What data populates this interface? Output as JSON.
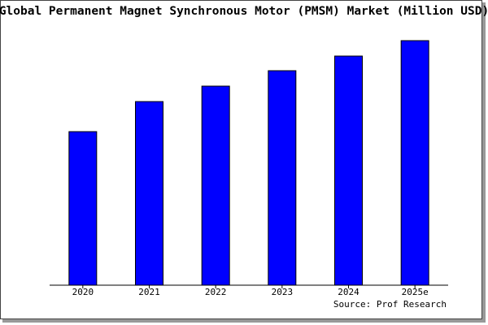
{
  "chart_data": {
    "type": "bar",
    "title": "Global Permanent Magnet Synchronous Motor (PMSM) Market (Million USD)",
    "categories": [
      "2020",
      "2021",
      "2022",
      "2023",
      "2024",
      "2025e"
    ],
    "values": [
      189,
      226,
      245,
      264,
      282,
      301
    ],
    "color": "#0000ff",
    "source": "Source: Prof Research"
  }
}
